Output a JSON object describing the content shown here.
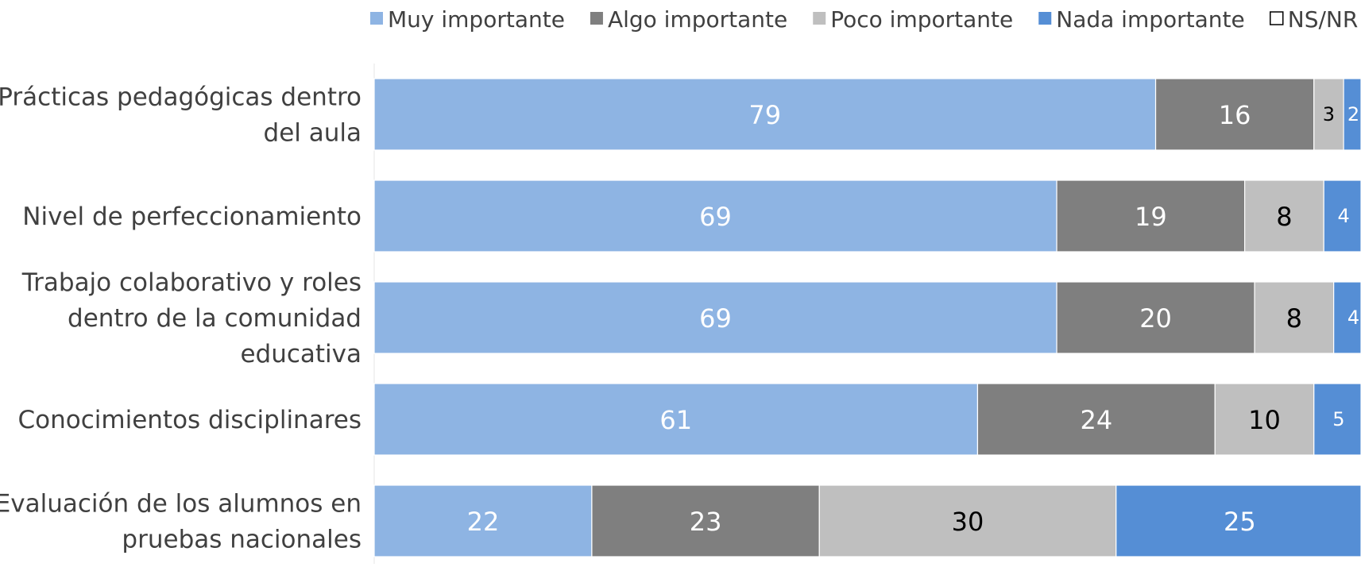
{
  "chart_data": {
    "type": "bar",
    "orientation": "horizontal",
    "stacked": true,
    "legend_position": "top",
    "grid": false,
    "xlim": [
      0,
      100
    ],
    "categories": [
      [
        "Prácticas pedagógicas dentro",
        "del aula"
      ],
      [
        "Nivel de perfeccionamiento"
      ],
      [
        "Trabajo colaborativo y roles",
        "dentro de la comunidad",
        "educativa"
      ],
      [
        "Conocimientos disciplinares"
      ],
      [
        "Evaluación de los alumnos en",
        "pruebas nacionales"
      ]
    ],
    "series": [
      {
        "name": "Muy importante",
        "color": "#8EB4E3",
        "label_color": "#ffffff",
        "values": [
          79,
          69,
          69,
          61,
          22
        ]
      },
      {
        "name": "Algo importante",
        "color": "#7F7F7F",
        "label_color": "#ffffff",
        "values": [
          16,
          19,
          20,
          24,
          23
        ]
      },
      {
        "name": "Poco importante",
        "color": "#BFBFBF",
        "label_color": "#000000",
        "values": [
          3,
          8,
          8,
          10,
          30
        ]
      },
      {
        "name": "Nada importante",
        "color": "#558ED5",
        "label_color": "#ffffff",
        "values": [
          2,
          4,
          4,
          5,
          25
        ]
      },
      {
        "name": "NS/NR",
        "color": "#ffffff",
        "label_color": "#000000",
        "values": [
          0,
          0,
          0,
          0.3,
          0.3
        ]
      }
    ]
  }
}
